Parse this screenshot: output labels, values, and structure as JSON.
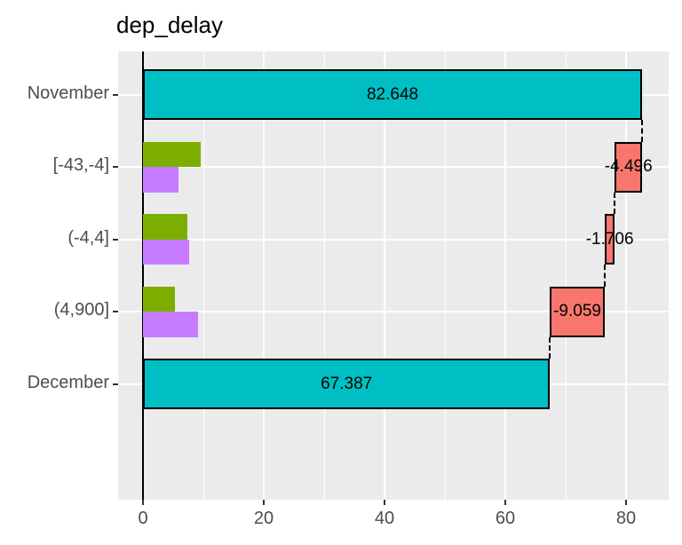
{
  "chart_data": {
    "type": "bar",
    "orientation": "horizontal",
    "subtype": "waterfall",
    "title": "dep_delay",
    "panel_bg": "#EBEBEB",
    "grid_color": "#FFFFFF",
    "axis_text_color": "#4D4D4D",
    "tick_color": "#333333",
    "zero_line_color": "#000000",
    "connector_color": "#000000",
    "x_axis": {
      "ticks": [
        0,
        20,
        40,
        60,
        80
      ],
      "minor_ticks": [
        10,
        30,
        50,
        70
      ],
      "lim": [
        -4.13,
        87.06
      ],
      "zero_line": 0
    },
    "y_categories": [
      "November",
      "[-43,-4]",
      "(-4,4]",
      "(4,900]",
      "December"
    ],
    "series_styles": {
      "total": {
        "fill": "#00BFC4",
        "outline": "#000000",
        "band": "full"
      },
      "group1": {
        "fill": "#7CAE00",
        "outline": null,
        "band": "top"
      },
      "group2": {
        "fill": "#C77CFF",
        "outline": null,
        "band": "bottom"
      },
      "delta": {
        "fill": "#F8766D",
        "outline": "#000000",
        "band": "full"
      }
    },
    "rows": [
      {
        "category": "November",
        "bars": [
          {
            "series": "total",
            "start": 0,
            "end": 82.648,
            "label": "82.648"
          }
        ]
      },
      {
        "category": "[-43,-4]",
        "bars": [
          {
            "series": "group1",
            "start": 0,
            "end": 9.6
          },
          {
            "series": "group2",
            "start": 0,
            "end": 5.9
          },
          {
            "series": "delta",
            "start": 78.152,
            "end": 82.648,
            "label": "-4.496"
          }
        ]
      },
      {
        "category": "(-4,4]",
        "bars": [
          {
            "series": "group1",
            "start": 0,
            "end": 7.4
          },
          {
            "series": "group2",
            "start": 0,
            "end": 7.6
          },
          {
            "series": "delta",
            "start": 76.446,
            "end": 78.152,
            "label": "-1.706"
          }
        ]
      },
      {
        "category": "(4,900]",
        "bars": [
          {
            "series": "group1",
            "start": 0,
            "end": 5.3
          },
          {
            "series": "group2",
            "start": 0,
            "end": 9.1
          },
          {
            "series": "delta",
            "start": 67.387,
            "end": 76.446,
            "label": "-9.059"
          }
        ]
      },
      {
        "category": "December",
        "bars": [
          {
            "series": "total",
            "start": 0,
            "end": 67.387,
            "label": "67.387"
          }
        ]
      }
    ],
    "connectors": [
      {
        "x": 82.648,
        "between": [
          0,
          1
        ]
      },
      {
        "x": 78.152,
        "between": [
          1,
          2
        ]
      },
      {
        "x": 76.446,
        "between": [
          2,
          3
        ]
      },
      {
        "x": 67.387,
        "between": [
          3,
          4
        ]
      }
    ]
  }
}
